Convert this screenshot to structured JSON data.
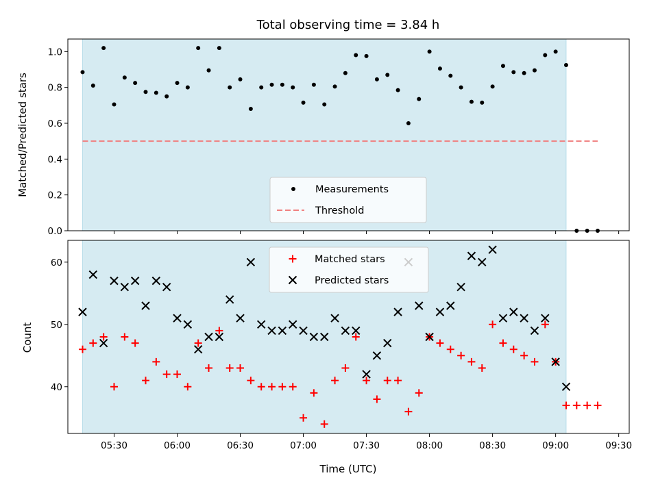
{
  "chart_data": [
    {
      "type": "scatter",
      "title": "Total observing time = 3.84 h",
      "xlabel": "",
      "ylabel": "Matched/Predicted stars",
      "xlim": [
        "05:08",
        "09:35"
      ],
      "ylim": [
        0,
        1.07
      ],
      "yticks": [
        "0.0",
        "0.2",
        "0.4",
        "0.6",
        "0.8",
        "1.0"
      ],
      "shaded_span": [
        "05:15",
        "09:05"
      ],
      "shade_color": "#add8e6",
      "legend_location": "lower center",
      "series": [
        {
          "name": "Measurements",
          "marker": "dot",
          "color": "#000000",
          "x": [
            "05:15",
            "05:20",
            "05:25",
            "05:30",
            "05:35",
            "05:40",
            "05:45",
            "05:50",
            "05:55",
            "06:00",
            "06:05",
            "06:10",
            "06:15",
            "06:20",
            "06:25",
            "06:30",
            "06:35",
            "06:40",
            "06:45",
            "06:50",
            "06:55",
            "07:00",
            "07:05",
            "07:10",
            "07:15",
            "07:20",
            "07:25",
            "07:30",
            "07:35",
            "07:40",
            "07:45",
            "07:50",
            "07:55",
            "08:00",
            "08:05",
            "08:10",
            "08:15",
            "08:20",
            "08:25",
            "08:30",
            "08:35",
            "08:40",
            "08:45",
            "08:50",
            "08:55",
            "09:00",
            "09:05",
            "09:10",
            "09:15",
            "09:20"
          ],
          "y": [
            0.885,
            0.81,
            1.02,
            0.705,
            0.855,
            0.825,
            0.775,
            0.77,
            0.75,
            0.825,
            0.8,
            1.02,
            0.895,
            1.02,
            0.8,
            0.845,
            0.68,
            0.8,
            0.815,
            0.815,
            0.8,
            0.715,
            0.815,
            0.705,
            0.805,
            0.88,
            0.98,
            0.975,
            0.845,
            0.87,
            0.785,
            0.6,
            0.735,
            1.0,
            0.905,
            0.865,
            0.8,
            0.72,
            0.715,
            0.805,
            0.92,
            0.885,
            0.88,
            0.895,
            0.98,
            1.0,
            0.925,
            0.0,
            0.0,
            0.0
          ]
        },
        {
          "name": "Threshold",
          "line": "dashed",
          "color": "#f08080",
          "x": [
            "05:15",
            "09:20"
          ],
          "y": [
            0.5,
            0.5
          ]
        }
      ]
    },
    {
      "type": "scatter",
      "title": "",
      "xlabel": "Time (UTC)",
      "ylabel": "Count",
      "xlim": [
        "05:08",
        "09:35"
      ],
      "ylim": [
        32.5,
        63.5
      ],
      "yticks": [
        "40",
        "50",
        "60"
      ],
      "xticks": [
        "05:30",
        "06:00",
        "06:30",
        "07:00",
        "07:30",
        "08:00",
        "08:30",
        "09:00",
        "09:30"
      ],
      "shaded_span": [
        "05:15",
        "09:05"
      ],
      "shade_color": "#add8e6",
      "legend_location": "upper center",
      "series": [
        {
          "name": "Matched stars",
          "marker": "plus",
          "color": "#ff0000",
          "x": [
            "05:15",
            "05:20",
            "05:25",
            "05:30",
            "05:35",
            "05:40",
            "05:45",
            "05:50",
            "05:55",
            "06:00",
            "06:05",
            "06:10",
            "06:15",
            "06:20",
            "06:25",
            "06:30",
            "06:35",
            "06:40",
            "06:45",
            "06:50",
            "06:55",
            "07:00",
            "07:05",
            "07:10",
            "07:15",
            "07:20",
            "07:25",
            "07:30",
            "07:35",
            "07:40",
            "07:45",
            "07:50",
            "07:55",
            "08:00",
            "08:05",
            "08:10",
            "08:15",
            "08:20",
            "08:25",
            "08:30",
            "08:35",
            "08:40",
            "08:45",
            "08:50",
            "08:55",
            "09:00",
            "09:05",
            "09:10",
            "09:15",
            "09:20"
          ],
          "y": [
            46,
            47,
            48,
            40,
            48,
            47,
            41,
            44,
            42,
            42,
            40,
            47,
            43,
            49,
            43,
            43,
            41,
            40,
            40,
            40,
            40,
            35,
            39,
            34,
            41,
            43,
            48,
            41,
            38,
            41,
            41,
            36,
            39,
            48,
            47,
            46,
            45,
            44,
            43,
            50,
            47,
            46,
            45,
            44,
            50,
            44,
            37,
            37,
            37,
            37
          ]
        },
        {
          "name": "Predicted stars",
          "marker": "x",
          "color": "#000000",
          "x": [
            "05:15",
            "05:20",
            "05:25",
            "05:30",
            "05:35",
            "05:40",
            "05:45",
            "05:50",
            "05:55",
            "06:00",
            "06:05",
            "06:10",
            "06:15",
            "06:20",
            "06:25",
            "06:30",
            "06:35",
            "06:40",
            "06:45",
            "06:50",
            "06:55",
            "07:00",
            "07:05",
            "07:10",
            "07:15",
            "07:20",
            "07:25",
            "07:30",
            "07:35",
            "07:40",
            "07:45",
            "07:50",
            "07:55",
            "08:00",
            "08:05",
            "08:10",
            "08:15",
            "08:20",
            "08:25",
            "08:30",
            "08:35",
            "08:40",
            "08:45",
            "08:50",
            "08:55",
            "09:00",
            "09:05"
          ],
          "y": [
            52,
            58,
            47,
            57,
            56,
            57,
            53,
            57,
            56,
            51,
            50,
            46,
            48,
            48,
            54,
            51,
            60,
            50,
            49,
            49,
            50,
            49,
            48,
            48,
            51,
            49,
            49,
            42,
            45,
            47,
            52,
            60,
            53,
            48,
            52,
            53,
            56,
            61,
            60,
            62,
            51,
            52,
            51,
            49,
            51,
            44,
            40
          ]
        }
      ]
    }
  ]
}
